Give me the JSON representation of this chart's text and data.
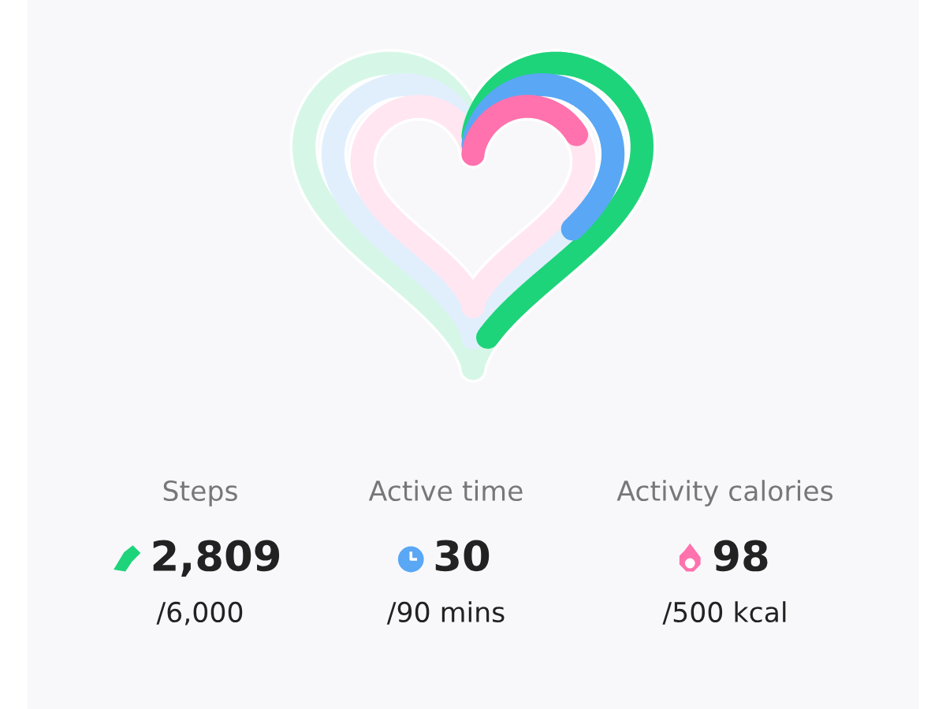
{
  "chart_data": {
    "type": "other",
    "categories": [
      "Steps",
      "Active time",
      "Activity calories"
    ],
    "series": [
      {
        "values": [
          2809,
          30,
          98
        ],
        "value_labels": [
          "2,809",
          "30",
          "98"
        ],
        "colors": [
          "#1ed47a",
          "#5aa7f5",
          "#ff72ad"
        ]
      },
      {
        "values": [
          6000,
          90,
          500
        ],
        "value_labels": [
          "/6,000",
          "/90 mins",
          "/500 kcal"
        ]
      }
    ]
  }
}
